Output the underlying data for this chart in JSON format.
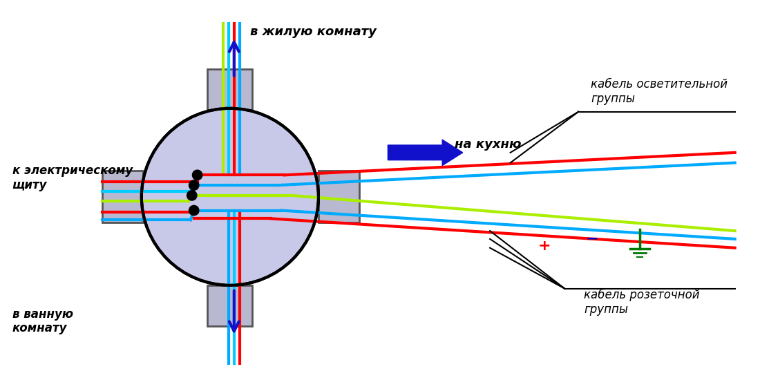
{
  "bg_color": "#ffffff",
  "circle_color": "#c8c8e8",
  "circle_edge": "#000000",
  "conduit_color": "#b8b8d0",
  "conduit_edge": "#555555",
  "wire_red": "#ff0000",
  "wire_blue": "#00aaff",
  "wire_cyan": "#00ccff",
  "wire_green": "#aaee00",
  "wire_lw": 3.0,
  "dot_color": "#000000",
  "arrow_color": "#1111cc",
  "labels": {
    "up": "в жилую комнату",
    "left": "к электрическому\nщиту",
    "right_kitchen": "на кухню",
    "down": "в ванную\nкомнату",
    "cable_light": "кабель осветительной\nгруппы",
    "cable_socket": "кабель розеточной\nгруппы"
  }
}
